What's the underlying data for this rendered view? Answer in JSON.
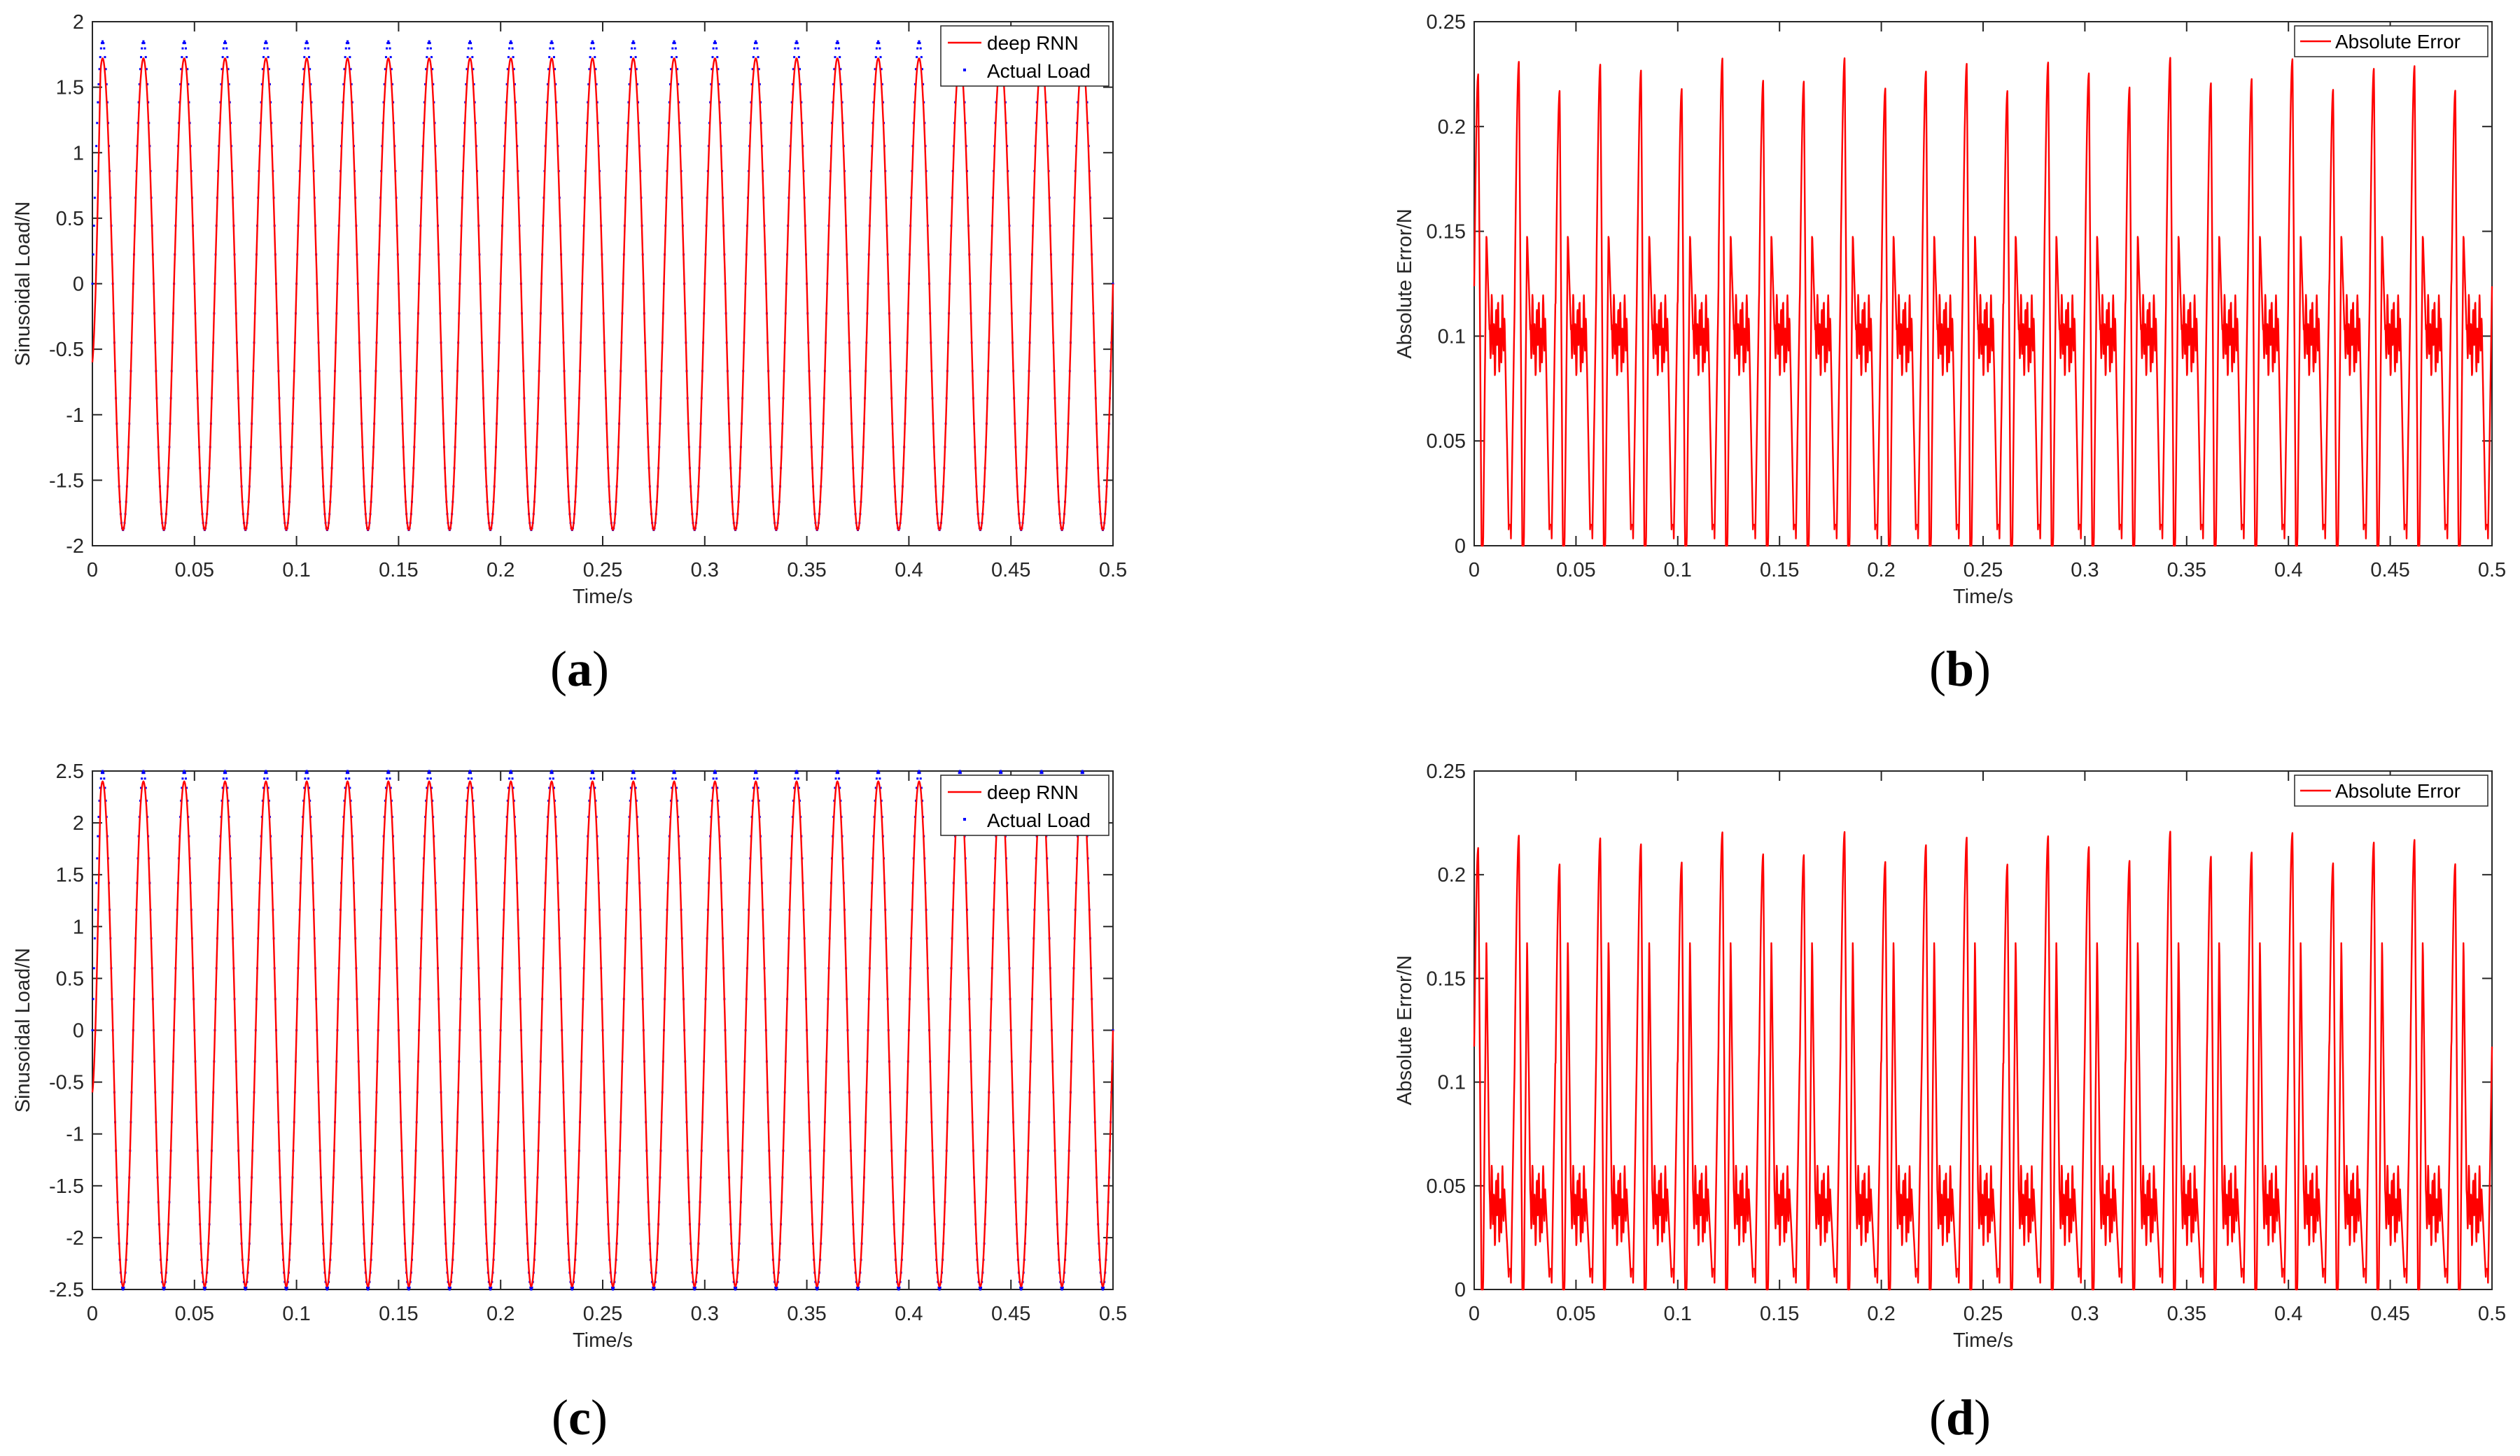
{
  "colors": {
    "model": "#ff0000",
    "actual": "#0000ff",
    "axis": "#262626",
    "error": "#ff0000"
  },
  "chart_data": [
    {
      "panel": "a",
      "caption": "a",
      "type": "line",
      "xlabel": "Time/s",
      "ylabel": "Sinusoidal Load/N",
      "xlim": [
        0,
        0.5
      ],
      "ylim": [
        -2,
        2
      ],
      "xticks": [
        "0",
        "0.05",
        "0.1",
        "0.15",
        "0.2",
        "0.25",
        "0.3",
        "0.35",
        "0.4",
        "0.45",
        "0.5"
      ],
      "yticks": [
        "-2",
        "-1.5",
        "-1",
        "-0.5",
        "0",
        "0.5",
        "1",
        "1.5",
        "2"
      ],
      "legend": "top-right",
      "frequency_hz": 50,
      "series": [
        {
          "name": "deep RNN",
          "style": "solid",
          "amplitude_max": 1.72,
          "amplitude_min": -1.88
        },
        {
          "name": "Actual Load",
          "style": "dotted",
          "amplitude_max": 1.85,
          "amplitude_min": -1.88
        }
      ]
    },
    {
      "panel": "b",
      "caption": "b",
      "type": "line",
      "xlabel": "Time/s",
      "ylabel": "Absolute Error/N",
      "xlim": [
        0,
        0.5
      ],
      "ylim": [
        0,
        0.25
      ],
      "xticks": [
        "0",
        "0.05",
        "0.1",
        "0.15",
        "0.2",
        "0.25",
        "0.3",
        "0.35",
        "0.4",
        "0.45",
        "0.5"
      ],
      "yticks": [
        "0",
        "0.05",
        "0.1",
        "0.15",
        "0.2",
        "0.25"
      ],
      "legend": "top-right",
      "frequency_hz": 50,
      "series": [
        {
          "name": "Absolute Error",
          "style": "solid",
          "peak": 0.225,
          "secondary_peak": 0.15,
          "mid_level": 0.1,
          "minimum": 0.0
        }
      ]
    },
    {
      "panel": "c",
      "caption": "c",
      "type": "line",
      "xlabel": "Time/s",
      "ylabel": "Sinusoidal Load/N",
      "xlim": [
        0,
        0.5
      ],
      "ylim": [
        -2.5,
        2.5
      ],
      "xticks": [
        "0",
        "0.05",
        "0.1",
        "0.15",
        "0.2",
        "0.25",
        "0.3",
        "0.35",
        "0.4",
        "0.45",
        "0.5"
      ],
      "yticks": [
        "-2.5",
        "-2",
        "-1.5",
        "-1",
        "-0.5",
        "0",
        "0.5",
        "1",
        "1.5",
        "2",
        "2.5"
      ],
      "legend": "top-right",
      "frequency_hz": 50,
      "series": [
        {
          "name": "deep RNN",
          "style": "solid",
          "amplitude_max": 2.4,
          "amplitude_min": -2.47
        },
        {
          "name": "Actual Load",
          "style": "dotted",
          "amplitude_max": 2.5,
          "amplitude_min": -2.5
        }
      ]
    },
    {
      "panel": "d",
      "caption": "d",
      "type": "line",
      "xlabel": "Time/s",
      "ylabel": "Absolute Error/N",
      "xlim": [
        0,
        0.5
      ],
      "ylim": [
        0,
        0.25
      ],
      "xticks": [
        "0",
        "0.05",
        "0.1",
        "0.15",
        "0.2",
        "0.25",
        "0.3",
        "0.35",
        "0.4",
        "0.45",
        "0.5"
      ],
      "yticks": [
        "0",
        "0.05",
        "0.1",
        "0.15",
        "0.2",
        "0.25"
      ],
      "legend": "top-right",
      "frequency_hz": 50,
      "series": [
        {
          "name": "Absolute Error",
          "style": "solid",
          "peak": 0.213,
          "secondary_peak": 0.17,
          "mid_level": 0.04,
          "minimum": 0.0
        }
      ]
    }
  ]
}
